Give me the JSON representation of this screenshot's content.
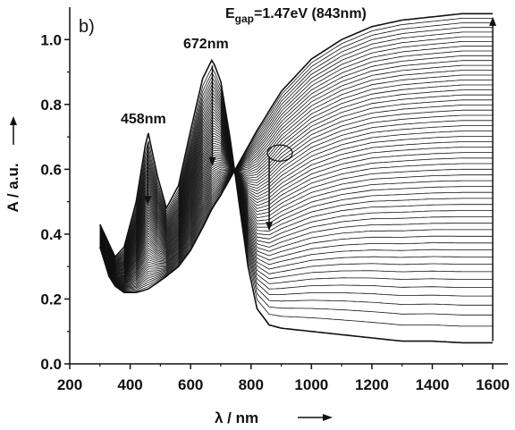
{
  "chart_data": {
    "type": "line",
    "panel_label": "b)",
    "xlabel": "λ / nm",
    "ylabel": "A / a.u.",
    "xlim": [
      200,
      1650
    ],
    "ylim": [
      0.0,
      1.1
    ],
    "x_ticks": [
      200,
      400,
      600,
      800,
      1000,
      1200,
      1400,
      1600
    ],
    "x_tick_labels": [
      "200",
      "400",
      "600",
      "800",
      "1000",
      "1200",
      "1400",
      "1600"
    ],
    "y_ticks": [
      0.0,
      0.2,
      0.4,
      0.6,
      0.8,
      1.0
    ],
    "y_tick_labels": [
      "0.0",
      "0.2",
      "0.4",
      "0.6",
      "0.8",
      "1.0"
    ],
    "grid": false,
    "series_count": 55,
    "wavelength_range": [
      300,
      1600
    ],
    "initial_spectrum": {
      "x": [
        300,
        330,
        350,
        380,
        420,
        458,
        490,
        520,
        560,
        600,
        640,
        672,
        700,
        730,
        760,
        790,
        820,
        860,
        900,
        1000,
        1100,
        1200,
        1300,
        1400,
        1500,
        1600
      ],
      "y": [
        0.43,
        0.37,
        0.33,
        0.36,
        0.5,
        0.72,
        0.58,
        0.48,
        0.55,
        0.72,
        0.88,
        0.94,
        0.87,
        0.7,
        0.5,
        0.3,
        0.17,
        0.12,
        0.11,
        0.1,
        0.09,
        0.08,
        0.07,
        0.07,
        0.065,
        0.065
      ]
    },
    "final_spectrum": {
      "x": [
        300,
        330,
        350,
        380,
        420,
        458,
        490,
        520,
        560,
        600,
        640,
        672,
        700,
        730,
        760,
        790,
        820,
        860,
        900,
        1000,
        1100,
        1200,
        1300,
        1400,
        1500,
        1600
      ],
      "y": [
        0.36,
        0.27,
        0.24,
        0.22,
        0.22,
        0.23,
        0.25,
        0.27,
        0.3,
        0.35,
        0.42,
        0.48,
        0.52,
        0.57,
        0.62,
        0.67,
        0.72,
        0.78,
        0.84,
        0.94,
        1.0,
        1.04,
        1.06,
        1.07,
        1.08,
        1.08
      ]
    },
    "annotations": {
      "peak1": "458nm",
      "peak2": "672nm",
      "egap_prefix": "E",
      "egap_sub": "gap",
      "egap_value": "=1.47eV (843nm)"
    },
    "arrows": [
      {
        "from_x": 458,
        "from_y": 0.68,
        "to_x": 458,
        "to_y": 0.49
      },
      {
        "from_x": 672,
        "from_y": 0.92,
        "to_x": 672,
        "to_y": 0.61
      },
      {
        "from_x": 860,
        "from_y": 0.64,
        "to_x": 860,
        "to_y": 0.41
      },
      {
        "from_x": 1600,
        "from_y": 0.07,
        "to_x": 1600,
        "to_y": 1.07
      }
    ],
    "isosbestic_points": [
      {
        "x": 860,
        "y": 0.65
      }
    ]
  }
}
